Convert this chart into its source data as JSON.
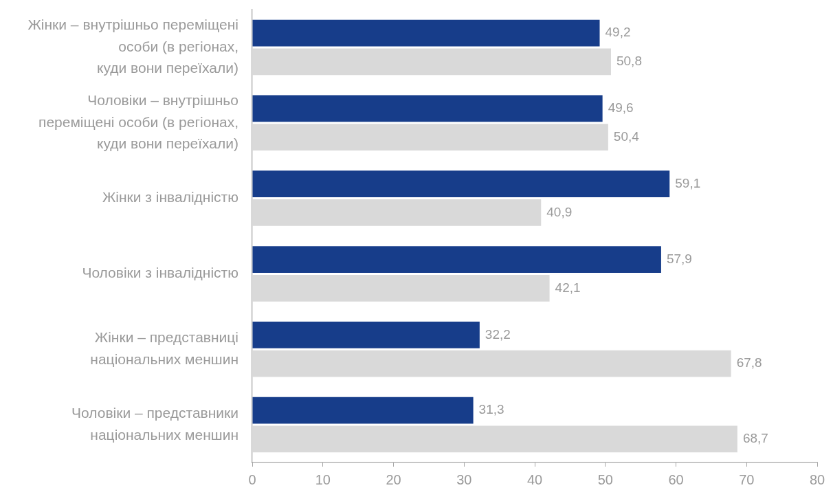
{
  "chart_data": {
    "type": "bar",
    "orientation": "horizontal",
    "categories": [
      "Жінки – внутрішньо переміщені\nособи (в регіонах,\nкуди вони переїхали)",
      "Чоловіки – внутрішньо\nпереміщені особи (в регіонах,\nкуди вони переїхали)",
      "Жінки з інвалідністю",
      "Чоловіки з інвалідністю",
      "Жінки – представниці\nнаціональних меншин",
      "Чоловіки – представники\nнаціональних меншин"
    ],
    "series": [
      {
        "color": "#173d8a",
        "values": [
          49.2,
          49.6,
          59.1,
          57.9,
          32.2,
          31.3
        ],
        "value_labels": [
          "49,2",
          "49,6",
          "59,1",
          "57,9",
          "32,2",
          "31,3"
        ]
      },
      {
        "color": "#d9d9d9",
        "values": [
          50.8,
          50.4,
          40.9,
          42.1,
          67.8,
          68.7
        ],
        "value_labels": [
          "50,8",
          "50,4",
          "40,9",
          "42,1",
          "67,8",
          "68,7"
        ]
      }
    ],
    "xlim": [
      0,
      80
    ],
    "xticks": [
      0,
      10,
      20,
      30,
      40,
      50,
      60,
      70,
      80
    ]
  }
}
